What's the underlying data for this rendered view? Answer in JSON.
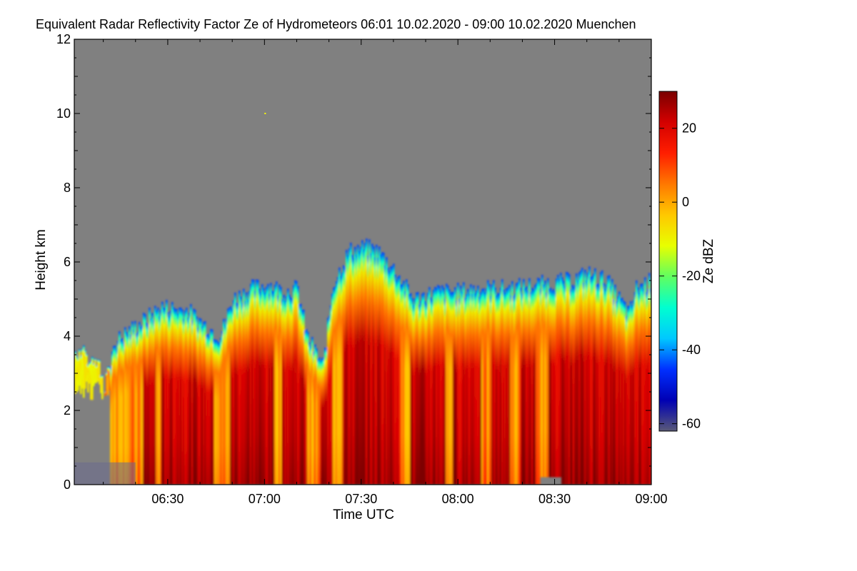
{
  "chart_data": {
    "type": "heatmap",
    "title": "Equivalent Radar Reflectivity Factor Ze of Hydrometeors",
    "time_range": "06:01 10.02.2020 - 09:00 10.02.2020",
    "location": "Muenchen",
    "xlabel": "Time UTC",
    "ylabel": "Height km",
    "colorbar_label": "Ze dBZ",
    "x_ticks": [
      "06:30",
      "07:00",
      "07:30",
      "08:00",
      "08:30",
      "09:00"
    ],
    "x_tick_minutes": [
      390,
      420,
      450,
      480,
      510,
      540
    ],
    "xlim_minutes": [
      361,
      540
    ],
    "y_ticks": [
      "0",
      "2",
      "4",
      "6",
      "8",
      "10",
      "12"
    ],
    "y_tick_values": [
      0,
      2,
      4,
      6,
      8,
      10,
      12
    ],
    "ylim": [
      0,
      12
    ],
    "colorbar_ticks": [
      "20",
      "0",
      "-20",
      "-40",
      "-60"
    ],
    "colorbar_tick_values": [
      20,
      0,
      -20,
      -40,
      -60
    ],
    "colorbar_range": [
      -62,
      30
    ],
    "colormap": [
      "#5a5a78",
      "#0000b4",
      "#0030ff",
      "#00c8ff",
      "#00ffd0",
      "#60ff60",
      "#e8ff00",
      "#ffc800",
      "#ff7800",
      "#ff1e00",
      "#d40000",
      "#7a0000"
    ],
    "background_color": "#808080",
    "echo_top_km": [
      {
        "time": "06:01",
        "top": 3.6
      },
      {
        "time": "06:08",
        "top": 3.4
      },
      {
        "time": "06:10",
        "top": 2.5
      },
      {
        "time": "06:13",
        "top": 3.8
      },
      {
        "time": "06:17",
        "top": 4.1
      },
      {
        "time": "06:22",
        "top": 4.4
      },
      {
        "time": "06:28",
        "top": 4.8
      },
      {
        "time": "06:36",
        "top": 4.7
      },
      {
        "time": "06:40",
        "top": 4.4
      },
      {
        "time": "06:46",
        "top": 4.0
      },
      {
        "time": "06:50",
        "top": 5.0
      },
      {
        "time": "06:56",
        "top": 5.3
      },
      {
        "time": "07:01",
        "top": 5.4
      },
      {
        "time": "07:06",
        "top": 5.2
      },
      {
        "time": "07:10",
        "top": 5.3
      },
      {
        "time": "07:13",
        "top": 4.0
      },
      {
        "time": "07:18",
        "top": 3.2
      },
      {
        "time": "07:21",
        "top": 5.4
      },
      {
        "time": "07:26",
        "top": 6.3
      },
      {
        "time": "07:31",
        "top": 6.4
      },
      {
        "time": "07:35",
        "top": 6.3
      },
      {
        "time": "07:40",
        "top": 5.8
      },
      {
        "time": "07:46",
        "top": 5.0
      },
      {
        "time": "07:53",
        "top": 5.2
      },
      {
        "time": "08:00",
        "top": 5.2
      },
      {
        "time": "08:06",
        "top": 5.3
      },
      {
        "time": "08:15",
        "top": 5.3
      },
      {
        "time": "08:25",
        "top": 5.4
      },
      {
        "time": "08:35",
        "top": 5.5
      },
      {
        "time": "08:40",
        "top": 5.7
      },
      {
        "time": "08:46",
        "top": 5.5
      },
      {
        "time": "08:53",
        "top": 4.6
      },
      {
        "time": "08:55",
        "top": 5.3
      },
      {
        "time": "09:00",
        "top": 5.5
      }
    ],
    "strong_echo_band_dbz": ">15 between about 06:22 and 09:00, heights 0 to 4.5 km",
    "dbz_range_observed": [
      -60,
      30
    ]
  }
}
